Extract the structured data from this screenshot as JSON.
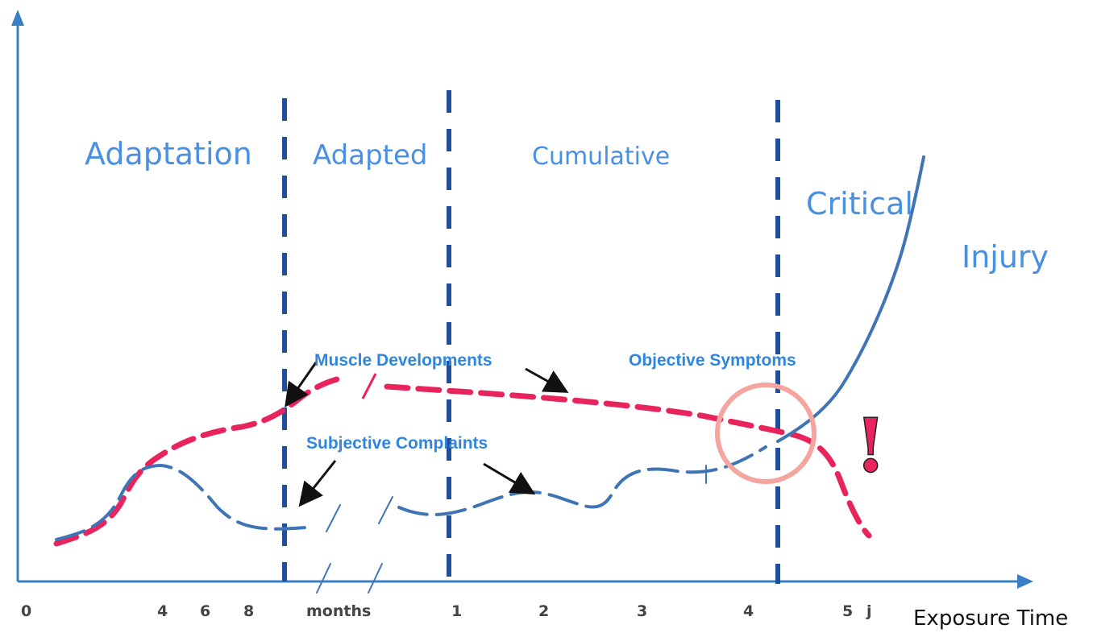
{
  "phases": {
    "adaptation": "Adaptation",
    "adapted": "Adapted",
    "cumulative": "Cumulative",
    "critical": "Critical",
    "injury": "Injury"
  },
  "annotations": {
    "muscle_developments": "Muscle Developments",
    "objective_symptoms": "Objective Symptoms",
    "subjective_complaints": "Subjective Complaints",
    "warning_mark": "!"
  },
  "x_axis": {
    "title": "Exposure Time",
    "ticks": [
      "0",
      "4",
      "6",
      "8",
      "months",
      "1",
      "2",
      "3",
      "4",
      "5",
      "j"
    ]
  },
  "colors": {
    "axis": "#3a7fc4",
    "phase_divider": "#1f4e9a",
    "phase_text": "#4a90e2",
    "annotation_text": "#2e86de",
    "muscle_curve": "#e8245c",
    "symptom_curve": "#3f74b5",
    "highlight_circle": "#f3a59e",
    "warning_mark": "#e8245c"
  }
}
